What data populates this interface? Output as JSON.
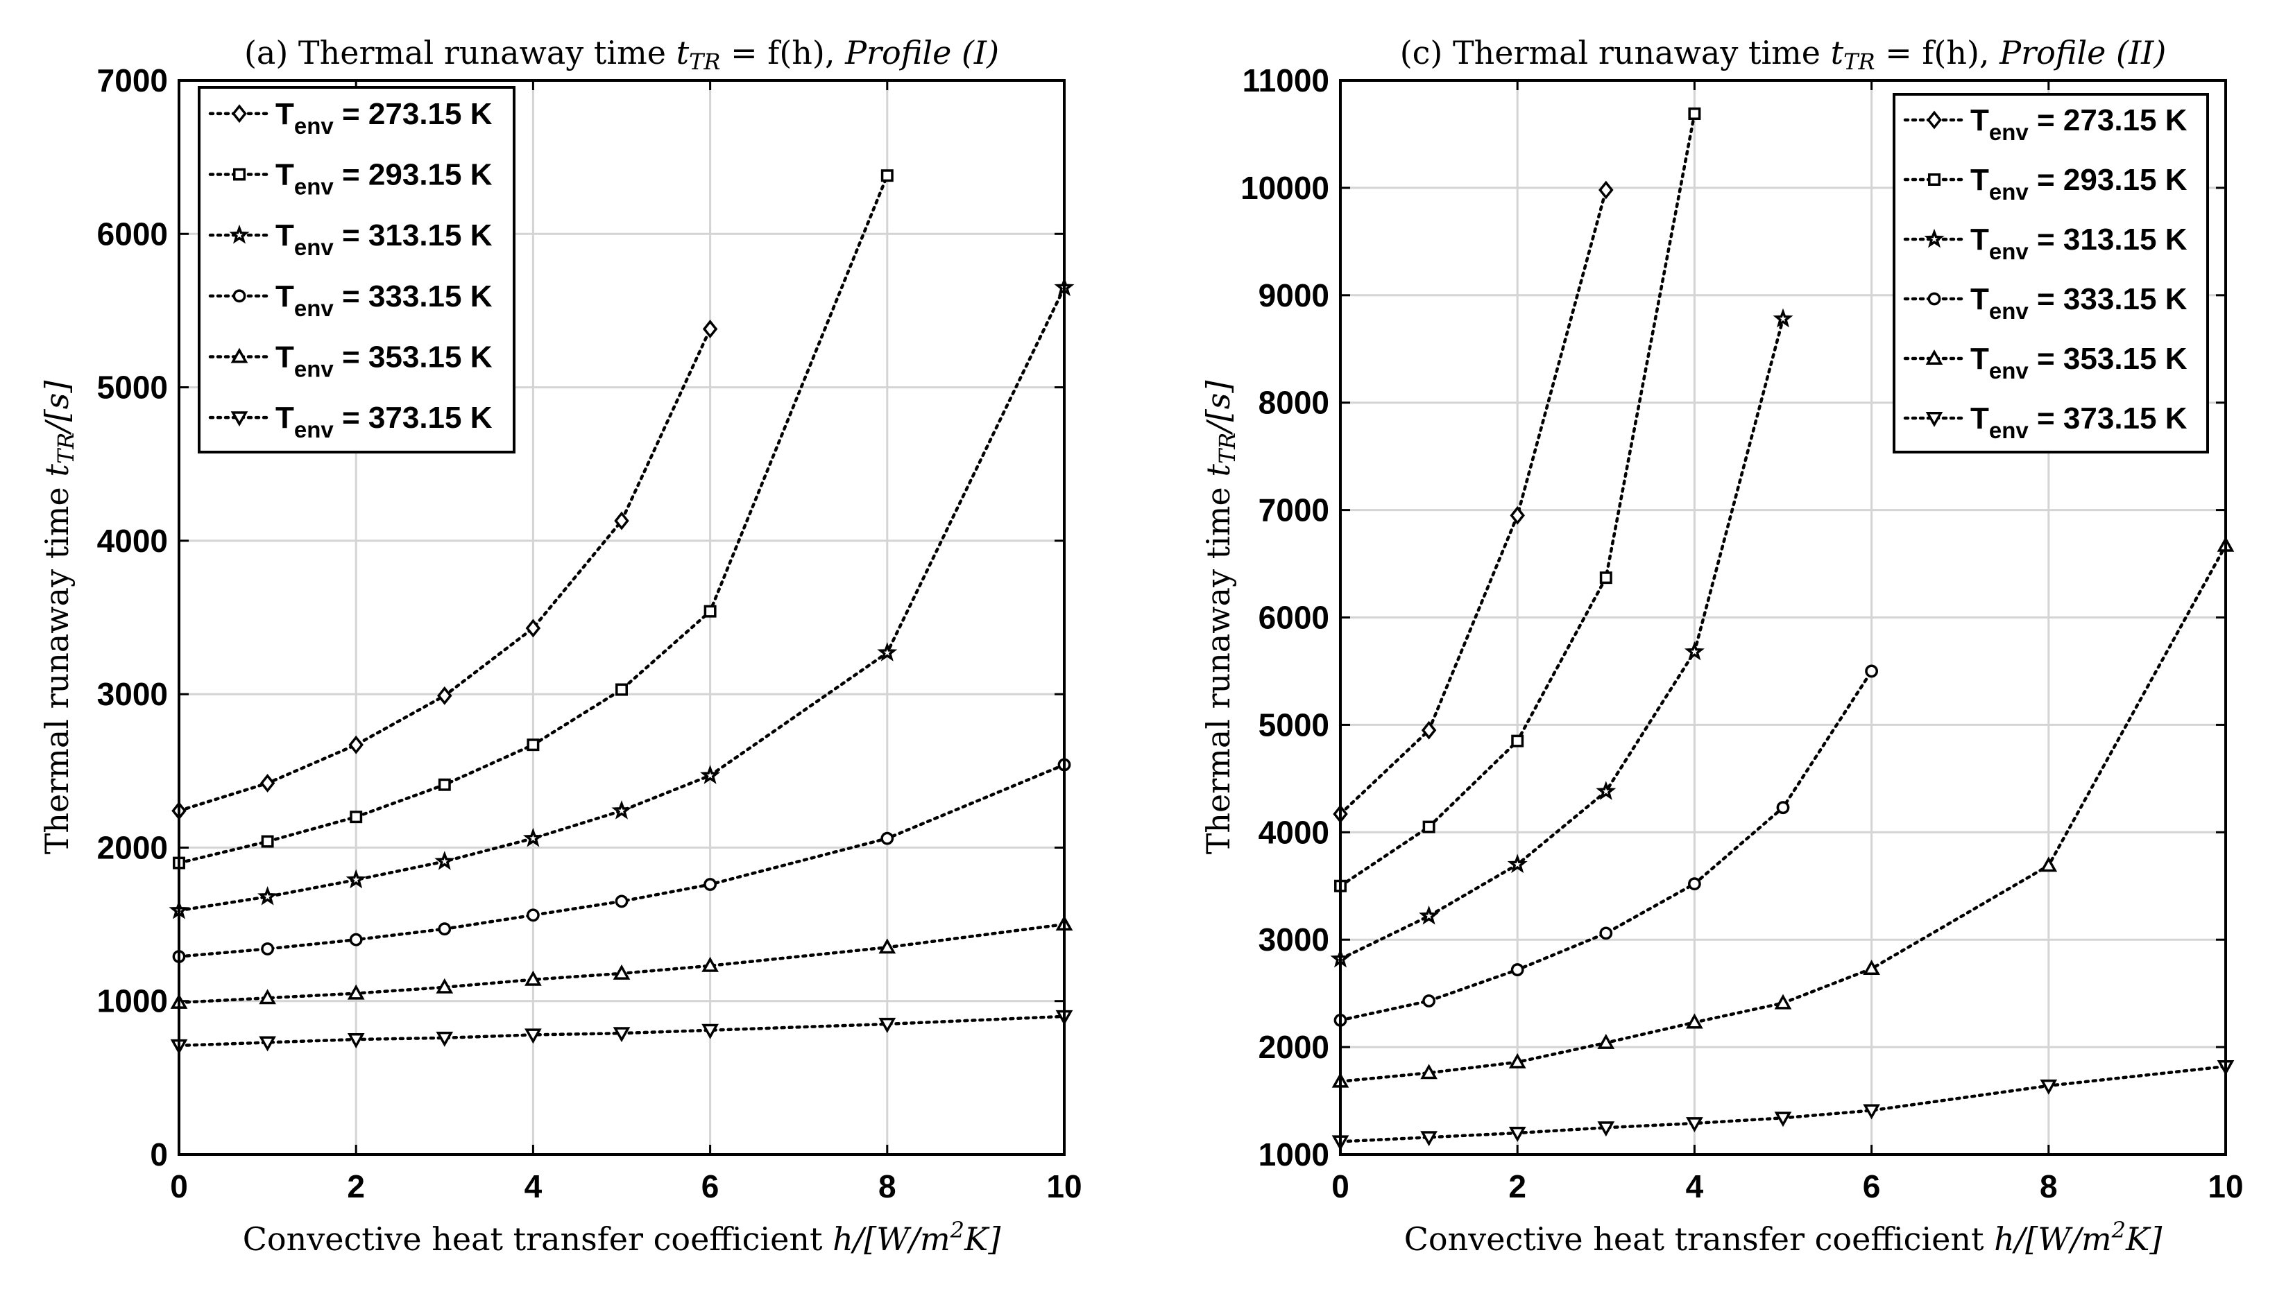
{
  "chart_data": [
    {
      "type": "line",
      "title": "(a) Thermal runaway time t_TR = f(h), Profile (I)",
      "title_parts": {
        "prefix": "(a) Thermal runaway time ",
        "var": "t",
        "var_sub": "TR",
        "eq": " = f(h), ",
        "profile": "Profile (I)"
      },
      "xlabel": "Convective heat transfer coefficient h/[W/m2K]",
      "xlabel_parts": {
        "prefix": "Convective heat transfer coefficient ",
        "math": "h/[W/m",
        "sup": "2",
        "suffix": "K]"
      },
      "ylabel": "Thermal runaway time t_TR/[s]",
      "ylabel_parts": {
        "prefix": "Thermal runaway time ",
        "var": "t",
        "var_sub": "TR",
        "suffix": "/[s]"
      },
      "xlim": [
        0,
        10
      ],
      "ylim": [
        0,
        7000
      ],
      "xticks": [
        "0",
        "2",
        "4",
        "6",
        "8",
        "10"
      ],
      "yticks": [
        "0",
        "1000",
        "2000",
        "3000",
        "4000",
        "5000",
        "6000",
        "7000"
      ],
      "grid": true,
      "legend_position": "top-left",
      "series": [
        {
          "name": "T_env = 273.15 K",
          "label_main": "T",
          "label_sub": "env",
          "label_value": " = 273.15 K",
          "marker": "diamond",
          "x": [
            0,
            1,
            2,
            3,
            4,
            5,
            6
          ],
          "y": [
            2240,
            2420,
            2670,
            2990,
            3430,
            4130,
            5380
          ]
        },
        {
          "name": "T_env = 293.15 K",
          "label_main": "T",
          "label_sub": "env",
          "label_value": " = 293.15 K",
          "marker": "square",
          "x": [
            0,
            1,
            2,
            3,
            4,
            5,
            6,
            8
          ],
          "y": [
            1900,
            2040,
            2200,
            2410,
            2670,
            3030,
            3540,
            6380
          ]
        },
        {
          "name": "T_env = 313.15 K",
          "label_main": "T",
          "label_sub": "env",
          "label_value": " = 313.15 K",
          "marker": "star",
          "x": [
            0,
            1,
            2,
            3,
            4,
            5,
            6,
            8,
            10
          ],
          "y": [
            1590,
            1680,
            1790,
            1910,
            2060,
            2240,
            2470,
            3270,
            5650
          ]
        },
        {
          "name": "T_env = 333.15 K",
          "label_main": "T",
          "label_sub": "env",
          "label_value": " = 333.15 K",
          "marker": "circle",
          "x": [
            0,
            1,
            2,
            3,
            4,
            5,
            6,
            8,
            10
          ],
          "y": [
            1290,
            1340,
            1400,
            1470,
            1560,
            1650,
            1760,
            2060,
            2540
          ]
        },
        {
          "name": "T_env = 353.15 K",
          "label_main": "T",
          "label_sub": "env",
          "label_value": " = 353.15 K",
          "marker": "triangle-up",
          "x": [
            0,
            1,
            2,
            3,
            4,
            5,
            6,
            8,
            10
          ],
          "y": [
            990,
            1020,
            1050,
            1090,
            1140,
            1180,
            1230,
            1350,
            1500
          ]
        },
        {
          "name": "T_env = 373.15 K",
          "label_main": "T",
          "label_sub": "env",
          "label_value": " = 373.15 K",
          "marker": "triangle-down",
          "x": [
            0,
            1,
            2,
            3,
            4,
            5,
            6,
            8,
            10
          ],
          "y": [
            710,
            730,
            750,
            760,
            780,
            790,
            810,
            850,
            900
          ]
        }
      ]
    },
    {
      "type": "line",
      "title": "(c) Thermal runaway time t_TR = f(h), Profile (II)",
      "title_parts": {
        "prefix": "(c) Thermal runaway time ",
        "var": "t",
        "var_sub": "TR",
        "eq": " = f(h), ",
        "profile": "Profile (II)"
      },
      "xlabel": "Convective heat transfer coefficient h/[W/m2K]",
      "xlabel_parts": {
        "prefix": "Convective heat transfer coefficient ",
        "math": "h/[W/m",
        "sup": "2",
        "suffix": "K]"
      },
      "ylabel": "Thermal runaway time t_TR/[s]",
      "ylabel_parts": {
        "prefix": "Thermal runaway time ",
        "var": "t",
        "var_sub": "TR",
        "suffix": "/[s]"
      },
      "xlim": [
        0,
        10
      ],
      "ylim": [
        1000,
        11000
      ],
      "xticks": [
        "0",
        "2",
        "4",
        "6",
        "8",
        "10"
      ],
      "yticks": [
        "1000",
        "2000",
        "3000",
        "4000",
        "5000",
        "6000",
        "7000",
        "8000",
        "9000",
        "10000",
        "11000"
      ],
      "grid": true,
      "legend_position": "top-right",
      "series": [
        {
          "name": "T_env = 273.15 K",
          "label_main": "T",
          "label_sub": "env",
          "label_value": " = 273.15 K",
          "marker": "diamond",
          "x": [
            0,
            1,
            2,
            3
          ],
          "y": [
            4170,
            4950,
            6950,
            9980
          ]
        },
        {
          "name": "T_env = 293.15 K",
          "label_main": "T",
          "label_sub": "env",
          "label_value": " = 293.15 K",
          "marker": "square",
          "x": [
            0,
            1,
            2,
            3,
            4
          ],
          "y": [
            3500,
            4050,
            4850,
            6370,
            10690
          ]
        },
        {
          "name": "T_env = 313.15 K",
          "label_main": "T",
          "label_sub": "env",
          "label_value": " = 313.15 K",
          "marker": "star",
          "x": [
            0,
            1,
            2,
            3,
            4,
            5
          ],
          "y": [
            2820,
            3220,
            3700,
            4380,
            5680,
            8780
          ]
        },
        {
          "name": "T_env = 333.15 K",
          "label_main": "T",
          "label_sub": "env",
          "label_value": " = 333.15 K",
          "marker": "circle",
          "x": [
            0,
            1,
            2,
            3,
            4,
            5,
            6
          ],
          "y": [
            2250,
            2430,
            2720,
            3060,
            3520,
            4230,
            5500
          ]
        },
        {
          "name": "T_env = 353.15 K",
          "label_main": "T",
          "label_sub": "env",
          "label_value": " = 353.15 K",
          "marker": "triangle-up",
          "x": [
            0,
            1,
            2,
            3,
            4,
            5,
            6,
            8,
            10
          ],
          "y": [
            1680,
            1760,
            1860,
            2040,
            2230,
            2410,
            2730,
            3690,
            6670
          ]
        },
        {
          "name": "T_env = 373.15 K",
          "label_main": "T",
          "label_sub": "env",
          "label_value": " = 373.15 K",
          "marker": "triangle-down",
          "x": [
            0,
            1,
            2,
            3,
            4,
            5,
            6,
            8,
            10
          ],
          "y": [
            1120,
            1160,
            1200,
            1250,
            1290,
            1340,
            1410,
            1640,
            1820
          ]
        }
      ]
    }
  ]
}
